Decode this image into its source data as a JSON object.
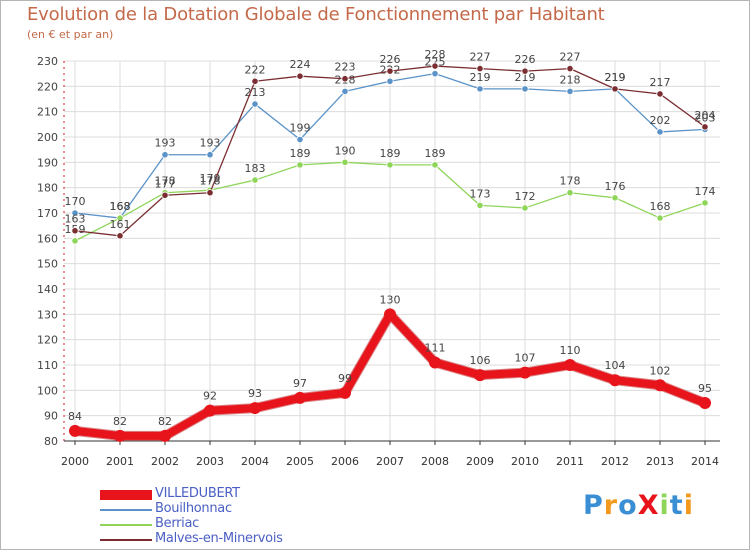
{
  "title": "Evolution de la Dotation Globale de Fonctionnement par Habitant",
  "subtitle": "(en € et par an)",
  "logo_text": "ProXiti",
  "chart_data": {
    "type": "line",
    "title": "Evolution de la Dotation Globale de Fonctionnement par Habitant",
    "subtitle": "(en € et par an)",
    "xlabel": "",
    "ylabel": "",
    "x": [
      "2000",
      "2001",
      "2002",
      "2003",
      "2004",
      "2005",
      "2006",
      "2007",
      "2008",
      "2009",
      "2010",
      "2011",
      "2012",
      "2013",
      "2014"
    ],
    "ylim": [
      80,
      230
    ],
    "yticks": [
      80,
      90,
      100,
      110,
      120,
      130,
      140,
      150,
      160,
      170,
      180,
      190,
      200,
      210,
      220,
      230
    ],
    "grid": true,
    "legend_position": "bottom-left",
    "series": [
      {
        "name": "VILLEDUBERT",
        "color": "#e8141b",
        "values": [
          84,
          82,
          82,
          92,
          93,
          97,
          99,
          130,
          111,
          106,
          107,
          110,
          104,
          102,
          95
        ]
      },
      {
        "name": "Bouilhonnac",
        "color": "#5b93c8",
        "values": [
          170,
          168,
          193,
          193,
          213,
          199,
          218,
          222,
          225,
          219,
          219,
          218,
          219,
          202,
          203
        ]
      },
      {
        "name": "Berriac",
        "color": "#8fd55a",
        "values": [
          159,
          168,
          178,
          179,
          183,
          189,
          190,
          189,
          189,
          173,
          172,
          178,
          176,
          168,
          174
        ]
      },
      {
        "name": "Malves-en-Minervois",
        "color": "#7a2e32",
        "values": [
          163,
          161,
          177,
          178,
          222,
          224,
          223,
          226,
          228,
          227,
          226,
          227,
          219,
          217,
          204
        ]
      }
    ]
  }
}
